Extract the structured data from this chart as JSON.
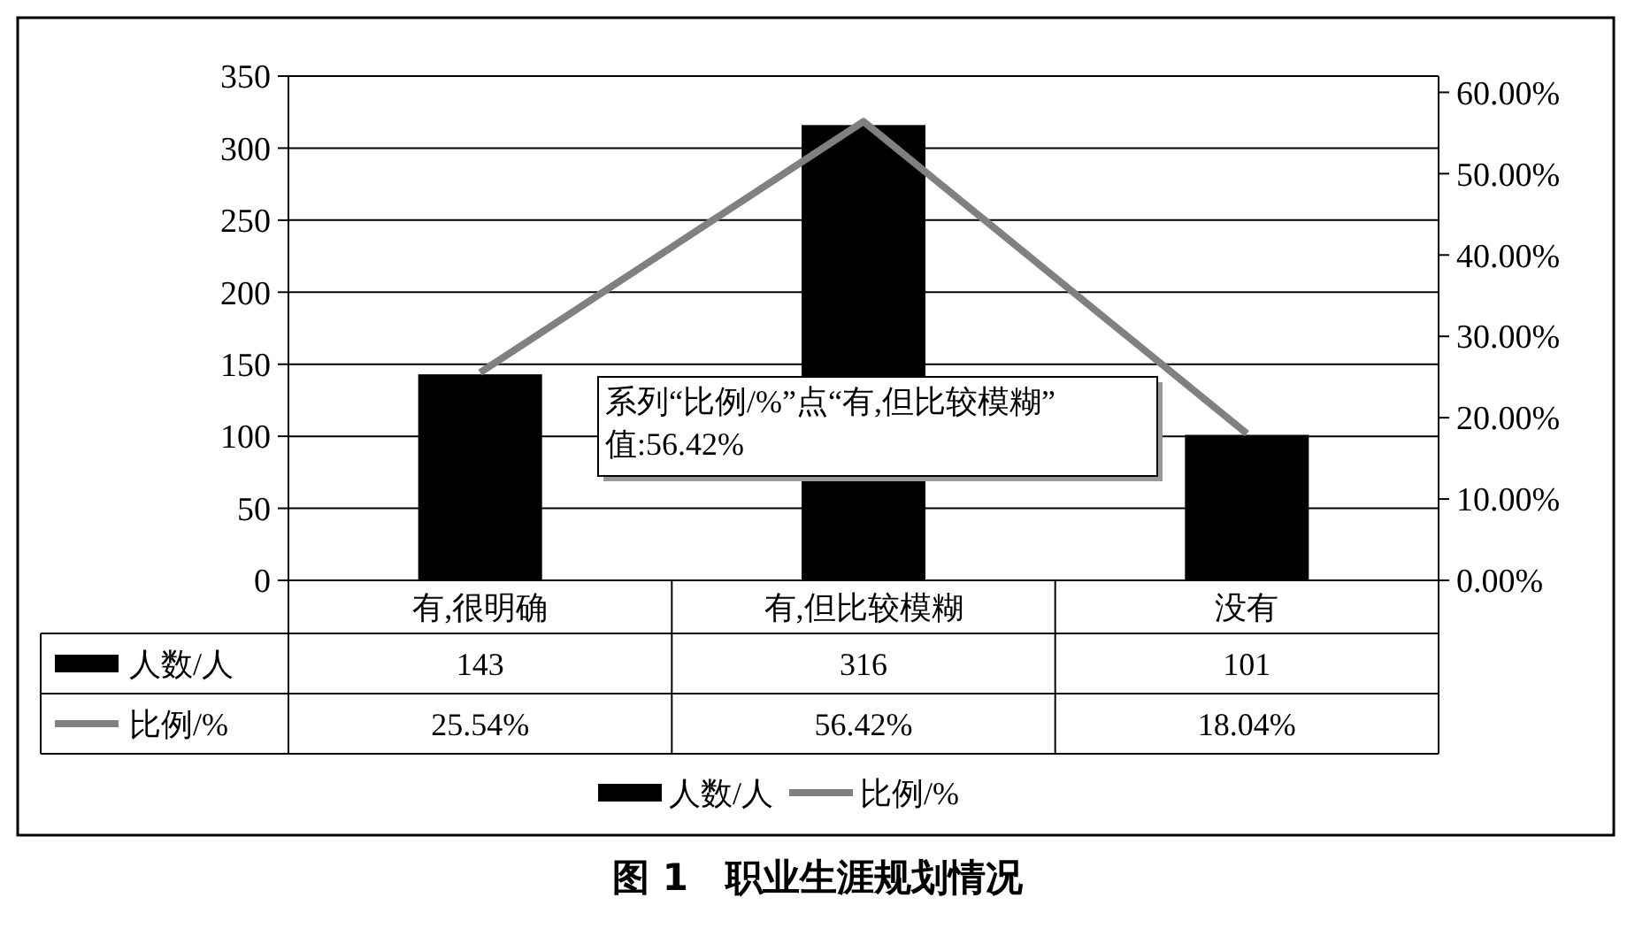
{
  "chart_data": {
    "type": "bar",
    "title": "图 1　职业生涯规划情况",
    "categories": [
      "有,很明确",
      "有,但比较模糊",
      "没有"
    ],
    "series": [
      {
        "name": "人数/人",
        "color": "#000000",
        "values": [
          143,
          316,
          101
        ],
        "value_labels": [
          "143",
          "316",
          "101"
        ]
      },
      {
        "name": "比例/%",
        "type": "line",
        "axis": "y2",
        "color": "#808080",
        "values": [
          25.54,
          56.42,
          18.04
        ],
        "value_labels": [
          "25.54%",
          "56.42%",
          "18.04%"
        ]
      }
    ],
    "ylim": [
      0,
      350
    ],
    "yticks": [
      0,
      50,
      100,
      150,
      200,
      250,
      300,
      350
    ],
    "y2lim": [
      0,
      62
    ],
    "y2ticks": [
      {
        "value": 0,
        "label": "0.00%"
      },
      {
        "value": 10,
        "label": "10.00%"
      },
      {
        "value": 20,
        "label": "20.00%"
      },
      {
        "value": 30,
        "label": "30.00%"
      },
      {
        "value": 40,
        "label": "40.00%"
      },
      {
        "value": 50,
        "label": "50.00%"
      },
      {
        "value": 60,
        "label": "60.00%"
      }
    ],
    "grid": "y",
    "legend": "bottom",
    "marker": "none",
    "line_style": "solid",
    "annotations": [
      "系列“比例/%”点“有,但比较模糊”\n值:56.42%"
    ]
  }
}
